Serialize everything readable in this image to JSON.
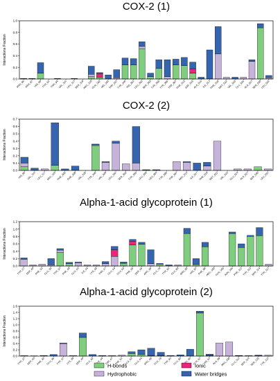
{
  "colors": {
    "hbond": "#7fcd7e",
    "hydrophobic": "#c5b3d9",
    "ionic": "#e8267a",
    "water": "#3465ae"
  },
  "legend": [
    {
      "key": "hbond",
      "label": "H-bonds"
    },
    {
      "key": "ionic",
      "label": "Ionic"
    },
    {
      "key": "hydrophobic",
      "label": "Hydrophobic"
    },
    {
      "key": "water",
      "label": "Water bridges"
    }
  ],
  "chart_data": [
    {
      "type": "bar",
      "stacked": true,
      "title": "COX-2 (1)",
      "ylabel": "Interactions Fraction",
      "ylim": [
        0,
        1.0
      ],
      "yticks": [
        "0.0",
        "0.2",
        "0.4",
        "0.6",
        "0.8",
        "1.0"
      ],
      "grid": false,
      "categories": [
        "PRO_86",
        "ASN_87",
        "HIS_90",
        "TYR_91",
        "THR_94",
        "VAL_116",
        "LEU_117",
        "SER_119",
        "ARG_120",
        "GLN_192",
        "HIS_193",
        "TRP_207",
        "TYR_248",
        "HIS_351",
        "LEU_352",
        "SER_353",
        "TYR_355",
        "TYR_385",
        "TRP_387",
        "PHE_513",
        "ASP_515",
        "ALA_516",
        "ILE_517",
        "PHE_518",
        "MET_522",
        "VAL_523",
        "GLY_526",
        "ALA_527",
        "SER_530",
        "LEU_531"
      ],
      "series": [
        {
          "key": "hbond",
          "values": [
            0,
            0,
            0.1,
            0,
            0,
            0,
            0,
            0,
            0.04,
            0.03,
            0,
            0,
            0.24,
            0.24,
            0.52,
            0.04,
            0.18,
            0,
            0.24,
            0.23,
            0.1,
            0,
            0,
            0,
            0,
            0,
            0,
            0,
            0.88,
            0
          ]
        },
        {
          "key": "hydrophobic",
          "values": [
            0,
            0,
            0,
            0,
            0,
            0,
            0,
            0,
            0.04,
            0,
            0,
            0.02,
            0,
            0,
            0.04,
            0,
            0,
            0.04,
            0,
            0,
            0,
            0,
            0,
            0.43,
            0.03,
            0,
            0.03,
            0.3,
            0,
            0.02
          ]
        },
        {
          "key": "ionic",
          "values": [
            0,
            0,
            0,
            0,
            0,
            0,
            0,
            0,
            0,
            0.06,
            0,
            0,
            0,
            0,
            0,
            0,
            0,
            0,
            0,
            0,
            0.07,
            0,
            0,
            0,
            0,
            0,
            0,
            0,
            0,
            0
          ]
        },
        {
          "key": "water",
          "values": [
            0.01,
            0.01,
            0.18,
            0,
            0.01,
            0,
            0.01,
            0,
            0.14,
            0.02,
            0.07,
            0.14,
            0.12,
            0.11,
            0.08,
            0.06,
            0.15,
            0.29,
            0.1,
            0.14,
            0.12,
            0.03,
            0.5,
            0.47,
            0,
            0.03,
            0,
            0.03,
            0.07,
            0.04
          ]
        }
      ]
    },
    {
      "type": "bar",
      "stacked": true,
      "title": "COX-2 (2)",
      "ylabel": "Interactions Fraction",
      "ylim": [
        0,
        0.7
      ],
      "yticks": [
        "0.0",
        "0.1",
        "0.2",
        "0.3",
        "0.4",
        "0.5",
        "0.6",
        "0.7"
      ],
      "grid": false,
      "categories": [
        "HIS_90",
        "VAL_116",
        "LEU_117",
        "ARG_120",
        "PHE_205",
        "PHE_209",
        "VAL_228",
        "TYR_348",
        "VAL_349",
        "LEU_352",
        "SER_353",
        "TYR_355",
        "LEU_359",
        "LEU_384",
        "TYR_385",
        "TRP_387",
        "ARG_513",
        "ILE_517",
        "PHE_518",
        "MET_522",
        "VAL_523",
        "GLU_524",
        "ALA_527",
        "SER_530",
        "LEU_531"
      ],
      "series": [
        {
          "key": "hbond",
          "values": [
            0.05,
            0,
            0,
            0.07,
            0,
            0,
            0,
            0.34,
            0,
            0,
            0,
            0,
            0,
            0,
            0,
            0,
            0,
            0,
            0,
            0,
            0,
            0,
            0,
            0.05,
            0
          ]
        },
        {
          "key": "hydrophobic",
          "values": [
            0.05,
            0,
            0.02,
            0,
            0,
            0,
            0,
            0.01,
            0.11,
            0.37,
            0.09,
            0.1,
            0,
            0,
            0,
            0.12,
            0.11,
            0,
            0.06,
            0.4,
            0,
            0.02,
            0.02,
            0,
            0.02
          ]
        },
        {
          "key": "ionic",
          "values": [
            0,
            0,
            0,
            0,
            0,
            0,
            0,
            0,
            0,
            0,
            0,
            0,
            0,
            0,
            0,
            0,
            0,
            0,
            0,
            0,
            0,
            0,
            0,
            0,
            0
          ]
        },
        {
          "key": "water",
          "values": [
            0.08,
            0.03,
            0,
            0.58,
            0.02,
            0.06,
            0,
            0.01,
            0.01,
            0.03,
            0,
            0.5,
            0.01,
            0.01,
            0,
            0,
            0.01,
            0.1,
            0.05,
            0,
            0,
            0,
            0,
            0,
            0
          ]
        }
      ]
    },
    {
      "type": "bar",
      "stacked": true,
      "title": "Alpha-1-acid glycoprotein (1)",
      "ylabel": "Interactions Fraction",
      "ylim": [
        0,
        1.2
      ],
      "yticks": [
        "0.0",
        "0.2",
        "0.4",
        "0.6",
        "0.8",
        "1.0",
        "1.2"
      ],
      "grid": false,
      "categories": [
        "TYR_27",
        "SER_40",
        "PHE_32",
        "GLU_36",
        "TYR_37",
        "PHE_49",
        "GLU_43",
        "ILE_44",
        "LYS_48",
        "THR_47",
        "GLU_64",
        "GLU_63",
        "PHE_65",
        "SER_66",
        "ARG_68",
        "GLU_78",
        "TYR_91",
        "GLU_80",
        "ARG_90",
        "HIS_97",
        "PHE_98",
        "ARG_100",
        "GLN_105",
        "ASN_106",
        "PHE_112",
        "TYR_113",
        "SER_114",
        "TYR_127"
      ],
      "series": [
        {
          "key": "hbond",
          "values": [
            0,
            0,
            0,
            0,
            0.37,
            0.06,
            0,
            0,
            0,
            0,
            0,
            0.07,
            0.57,
            0.59,
            0,
            0.05,
            0,
            0,
            0.88,
            0.04,
            0.52,
            0,
            0,
            0.88,
            0.5,
            0.8,
            0.82,
            0
          ],
          "note": ""
        },
        {
          "key": "hydrophobic",
          "values": [
            0.18,
            0.03,
            0.05,
            0.03,
            0.06,
            0,
            0.09,
            0.03,
            0.03,
            0.06,
            0.26,
            0,
            0,
            0,
            0.06,
            0,
            0,
            0.03,
            0,
            0,
            0,
            0,
            0,
            0,
            0,
            0,
            0,
            0.05
          ]
        },
        {
          "key": "ionic",
          "values": [
            0,
            0,
            0,
            0,
            0,
            0,
            0,
            0,
            0,
            0,
            0.18,
            0,
            0.1,
            0,
            0,
            0,
            0,
            0,
            0,
            0,
            0,
            0,
            0,
            0,
            0,
            0,
            0,
            0
          ]
        },
        {
          "key": "water",
          "values": [
            0.04,
            0,
            0,
            0.17,
            0.04,
            0.04,
            0.02,
            0,
            0,
            0.06,
            0.09,
            0.04,
            0.05,
            0.05,
            0.38,
            0.02,
            0.03,
            0,
            0.14,
            0.16,
            0.12,
            0,
            0,
            0.04,
            0.1,
            0.03,
            0.22,
            0
          ]
        }
      ]
    },
    {
      "type": "bar",
      "stacked": true,
      "title": "Alpha-1-acid glycoprotein (2)",
      "ylabel": "Interactions Fraction",
      "ylim": [
        0,
        1.6
      ],
      "yticks": [
        "0.0",
        "0.2",
        "0.4",
        "0.6",
        "0.8",
        "1.0",
        "1.2",
        "1.4",
        "1.6"
      ],
      "grid": false,
      "categories": [
        "TYR_27",
        "SER_40",
        "PHE_32",
        "GLU_36",
        "TYR_37",
        "LYS_39",
        "SER_40",
        "GLU_43",
        "ILE_44",
        "THR_47",
        "PHE_51",
        "GLU_62",
        "GLU_64",
        "ARG_68",
        "GLU_78",
        "TYR_91",
        "GLU_80",
        "ARG_90",
        "GLN_62",
        "HIS_97",
        "ALA_99",
        "ARG_100",
        "GLU_112",
        "SER_114",
        "SER_125",
        "TYR_127"
      ],
      "series": [
        {
          "key": "hbond",
          "values": [
            0,
            0,
            0,
            0,
            0,
            0,
            0.6,
            0,
            0,
            0,
            0,
            0.08,
            0.05,
            0,
            0,
            0,
            0,
            0,
            1.38,
            0,
            0,
            0,
            0,
            0,
            0,
            0
          ]
        },
        {
          "key": "hydrophobic",
          "values": [
            0.02,
            0.01,
            0,
            0,
            0.4,
            0.02,
            0,
            0,
            0,
            0.02,
            0.03,
            0,
            0,
            0.02,
            0.02,
            0,
            0,
            0,
            0,
            0.02,
            0.42,
            0.45,
            0.01,
            0.02,
            0.02,
            0.03
          ]
        },
        {
          "key": "ionic",
          "values": [
            0,
            0,
            0,
            0,
            0,
            0,
            0,
            0,
            0,
            0,
            0,
            0,
            0,
            0,
            0,
            0,
            0,
            0,
            0,
            0,
            0,
            0,
            0,
            0,
            0,
            0
          ]
        },
        {
          "key": "water",
          "values": [
            0,
            0,
            0.02,
            0.05,
            0.02,
            0,
            0.14,
            0.05,
            0.02,
            0,
            0,
            0.06,
            0.15,
            0.23,
            0.1,
            0.02,
            0.04,
            0.22,
            0.06,
            0.04,
            0,
            0,
            0.01,
            0,
            0.01,
            0
          ]
        }
      ]
    }
  ]
}
